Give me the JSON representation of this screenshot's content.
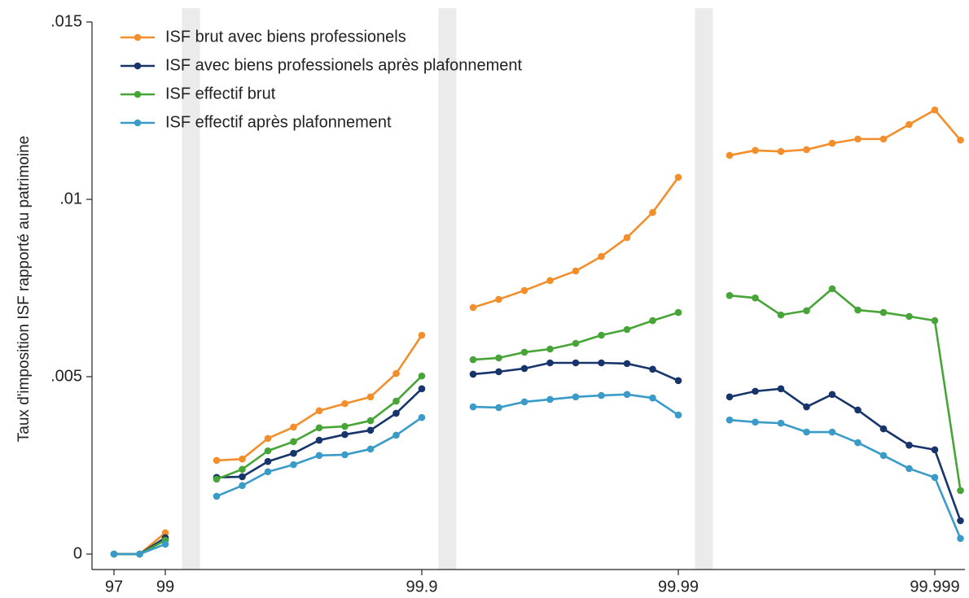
{
  "chart_data": {
    "type": "line",
    "ylabel": "Taux d'imposition ISF rapporté au patrimoine",
    "categories": [
      "97",
      null,
      "99",
      null,
      null,
      null,
      null,
      null,
      null,
      null,
      null,
      null,
      "99.9",
      null,
      null,
      null,
      null,
      null,
      null,
      null,
      null,
      null,
      "99.99",
      null,
      null,
      null,
      null,
      null,
      null,
      null,
      null,
      null,
      "99.999",
      null
    ],
    "ylim": [
      0,
      0.015
    ],
    "yticks": [
      0,
      {
        "value": 0.005,
        "label": ".005"
      },
      {
        "value": 0.01,
        "label": ".01"
      },
      {
        "value": 0.015,
        "label": ".015"
      }
    ],
    "legend": "top-left",
    "series": [
      {
        "name": "ISF brut avec biens professionels",
        "color": "#f28e2b",
        "values": [
          0,
          0,
          0.0006,
          null,
          0.00264,
          0.00268,
          0.00326,
          0.00358,
          0.00404,
          0.00424,
          0.00443,
          0.00509,
          0.00617,
          null,
          0.00695,
          0.00718,
          0.00743,
          0.00771,
          0.00798,
          0.00839,
          0.00892,
          0.00963,
          0.01062,
          null,
          0.01124,
          0.01138,
          0.01135,
          0.0114,
          0.01158,
          0.0117,
          0.0117,
          0.01211,
          0.01252,
          0.01167
        ]
      },
      {
        "name": "ISF avec biens professionels après plafonnement",
        "color": "#17356a",
        "values": [
          0,
          0,
          0.00046,
          null,
          0.00216,
          0.00218,
          0.00261,
          0.00284,
          0.00321,
          0.00337,
          0.00349,
          0.00397,
          0.00466,
          null,
          0.00507,
          0.00514,
          0.00523,
          0.00539,
          0.00539,
          0.00539,
          0.00537,
          0.00521,
          0.00489,
          null,
          0.00443,
          0.00459,
          0.00466,
          0.00415,
          0.0045,
          0.00406,
          0.00353,
          0.00307,
          0.00294,
          0.00094
        ]
      },
      {
        "name": "ISF effectif brut",
        "color": "#47a538",
        "values": [
          0,
          0,
          0.00039,
          null,
          0.00211,
          0.00239,
          0.00291,
          0.00317,
          0.00356,
          0.0036,
          0.00376,
          0.00431,
          0.00502,
          null,
          0.00548,
          0.00553,
          0.00569,
          0.00578,
          0.00594,
          0.00617,
          0.00633,
          0.00658,
          0.00681,
          null,
          0.00729,
          0.00722,
          0.00674,
          0.00686,
          0.00748,
          0.00688,
          0.00681,
          0.0067,
          0.00658,
          0.00179
        ]
      },
      {
        "name": "ISF effectif après plafonnement",
        "color": "#3a9bc8",
        "values": [
          0,
          0,
          0.00028,
          null,
          0.00163,
          0.00193,
          0.00232,
          0.00252,
          0.00278,
          0.0028,
          0.00296,
          0.00335,
          0.00385,
          null,
          0.00415,
          0.00413,
          0.00429,
          0.00436,
          0.00443,
          0.00447,
          0.0045,
          0.0044,
          0.00392,
          null,
          0.00378,
          0.00372,
          0.00369,
          0.00344,
          0.00344,
          0.00314,
          0.00278,
          0.00241,
          0.00216,
          0.00044
        ]
      }
    ]
  }
}
